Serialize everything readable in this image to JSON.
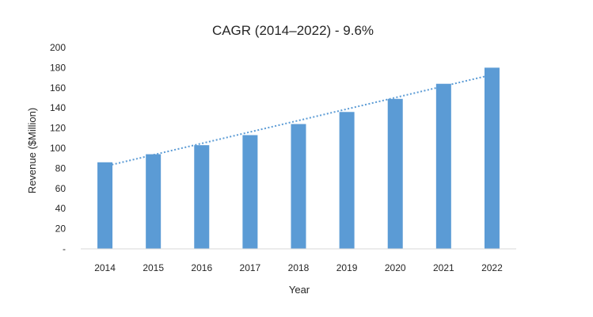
{
  "chart_data": {
    "type": "bar",
    "title": "CAGR (2014–2022) - 9.6%",
    "xlabel": "Year",
    "ylabel": "Revenue ($Million)",
    "categories": [
      "2014",
      "2015",
      "2016",
      "2017",
      "2018",
      "2019",
      "2020",
      "2021",
      "2022"
    ],
    "values": [
      86,
      94,
      103,
      113,
      124,
      136,
      149,
      164,
      180
    ],
    "ylim": [
      0,
      200
    ],
    "yticks": [
      0,
      20,
      40,
      60,
      80,
      100,
      120,
      140,
      160,
      180,
      200
    ],
    "ytick_labels": [
      "-",
      "20",
      "40",
      "60",
      "80",
      "100",
      "120",
      "140",
      "160",
      "180",
      "200"
    ],
    "grid": false,
    "bar_color": "#5b9bd5",
    "trendline": {
      "type": "linear",
      "style": "dotted",
      "color": "#5b9bd5",
      "start": 82,
      "end": 173
    }
  }
}
